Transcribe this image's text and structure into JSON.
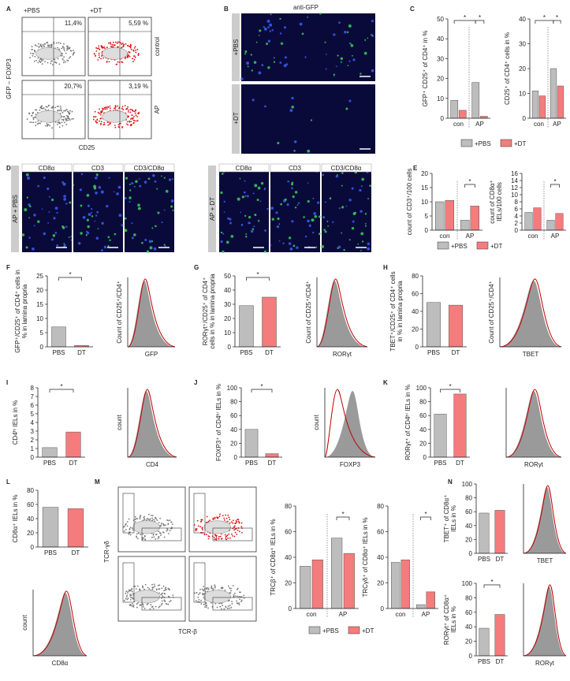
{
  "figure": {
    "panel_letters": [
      "A",
      "B",
      "C",
      "D",
      "E",
      "F",
      "G",
      "H",
      "I",
      "J",
      "K",
      "L",
      "M",
      "N"
    ],
    "legend": {
      "names": [
        "+PBS",
        "+DT"
      ],
      "colors": [
        "#bdbdbd",
        "#f47c7c"
      ]
    },
    "flow_a": {
      "columns": [
        "+PBS",
        "+DT"
      ],
      "rows": [
        "control",
        "AP"
      ],
      "percents": [
        "11,4%",
        "5,59 %",
        "20,7%",
        "3,19 %"
      ],
      "ylabel": "GFP – FOXP3",
      "xlabel": "CD25"
    },
    "image_b": {
      "title": "anti-GFP",
      "rows": [
        "+PBS",
        "+DT"
      ]
    },
    "image_d": {
      "columns": [
        "CD8α",
        "CD3",
        "CD3/CD8α"
      ],
      "groups": [
        "AP + PBS",
        "AP + DT"
      ]
    },
    "flow_m": {
      "ylabel": "TCR-γδ",
      "xlabel": "TCR-β"
    },
    "histograms": [
      {
        "ylabel": "Count of CD25⁺/CD4⁺",
        "xlabel": "GFP"
      },
      {
        "ylabel": "Count of CD25⁺/CD4⁺",
        "xlabel": "RORγt"
      },
      {
        "ylabel": "Count of CD25⁺/CD4⁺",
        "xlabel": "TBET"
      },
      {
        "ylabel": "count",
        "xlabel": "CD4"
      },
      {
        "ylabel": "count",
        "xlabel": "FOXP3"
      },
      {
        "xlabel": "RORγt"
      },
      {
        "ylabel": "count",
        "xlabel": "CD8α"
      },
      {
        "xlabel": "TBET"
      },
      {
        "xlabel": "RORγt"
      }
    ]
  },
  "chart_data": [
    {
      "type": "grouped-bar",
      "ylabel": [
        "GFP⁺ CD25⁺ of CD4⁺ in %"
      ],
      "categories": [
        "con",
        "AP"
      ],
      "series": [
        {
          "color": "#bdbdbd",
          "values": [
            9,
            18
          ]
        },
        {
          "color": "#f47c7c",
          "values": [
            4,
            1
          ]
        }
      ],
      "ylim": [
        0,
        50
      ],
      "yticks": [
        0,
        10,
        20,
        30,
        40,
        50
      ],
      "annotations": [
        "*",
        "*"
      ]
    },
    {
      "type": "grouped-bar",
      "ylabel": [
        "CD25⁺ of CD4⁺ cells in %"
      ],
      "categories": [
        "con",
        "AP"
      ],
      "series": [
        {
          "color": "#bdbdbd",
          "values": [
            11,
            20
          ]
        },
        {
          "color": "#f47c7c",
          "values": [
            9,
            13
          ]
        }
      ],
      "ylim": [
        0,
        40
      ],
      "yticks": [
        0,
        10,
        20,
        30,
        40
      ],
      "annotations": [
        "*",
        "*"
      ]
    },
    {
      "type": "grouped-bar",
      "ylabel": [
        "count of CD3⁺/100 cells"
      ],
      "categories": [
        "con",
        "AP"
      ],
      "series": [
        {
          "color": "#bdbdbd",
          "values": [
            10,
            3.5
          ]
        },
        {
          "color": "#f47c7c",
          "values": [
            10.5,
            8.5
          ]
        }
      ],
      "ylim": [
        0,
        20
      ],
      "yticks": [
        0,
        5,
        10,
        15,
        20
      ],
      "annotations": [
        "*"
      ]
    },
    {
      "type": "grouped-bar",
      "ylabel": [
        "count of CD8α⁺",
        "IELs/100 cells"
      ],
      "categories": [
        "con",
        "AP"
      ],
      "series": [
        {
          "color": "#bdbdbd",
          "values": [
            5,
            2.8
          ]
        },
        {
          "color": "#f47c7c",
          "values": [
            6.3,
            4.7
          ]
        }
      ],
      "ylim": [
        0,
        16
      ],
      "yticks": [
        0,
        2,
        4,
        6,
        8,
        10,
        12,
        14,
        16
      ],
      "annotations": [
        "*"
      ]
    },
    {
      "type": "bar",
      "ylabel": [
        "GFP⁺/CD25⁺ of CD4⁺ cells in",
        "% in lamina propria"
      ],
      "categories": [
        "PBS",
        "DT"
      ],
      "values": [
        7,
        0.5
      ],
      "colors": [
        "#bdbdbd",
        "#f47c7c"
      ],
      "ylim": [
        0,
        25
      ],
      "yticks": [
        0,
        5,
        10,
        15,
        20,
        25
      ],
      "annotations": [
        "*"
      ]
    },
    {
      "type": "bar",
      "ylabel": [
        "RORγt⁺/CD25⁺ of CD4⁺",
        "cells in % in lamina propria"
      ],
      "categories": [
        "PBS",
        "DT"
      ],
      "values": [
        29,
        35
      ],
      "colors": [
        "#bdbdbd",
        "#f47c7c"
      ],
      "ylim": [
        0,
        50
      ],
      "yticks": [
        0,
        10,
        20,
        30,
        40,
        50
      ],
      "annotations": [
        "*"
      ]
    },
    {
      "type": "bar",
      "ylabel": [
        "TBET⁺/CD25⁺ of CD4⁺ cells",
        "in % in lamina propria"
      ],
      "categories": [
        "PBS",
        "DT"
      ],
      "values": [
        50,
        47
      ],
      "colors": [
        "#bdbdbd",
        "#f47c7c"
      ],
      "ylim": [
        0,
        80
      ],
      "yticks": [
        0,
        20,
        40,
        60,
        80
      ],
      "annotations": []
    },
    {
      "type": "bar",
      "ylabel": [
        "CD4ʰⁱ IELs in %"
      ],
      "categories": [
        "PBS",
        "DT"
      ],
      "values": [
        1.1,
        2.9
      ],
      "colors": [
        "#bdbdbd",
        "#f47c7c"
      ],
      "ylim": [
        0,
        8
      ],
      "yticks": [
        0,
        1,
        2,
        3,
        4,
        5,
        6,
        7,
        8
      ],
      "annotations": [
        "*"
      ]
    },
    {
      "type": "bar",
      "ylabel": [
        "FOXP3⁺ of CD4ʰⁱ IELs in %"
      ],
      "categories": [
        "PBS",
        "DT"
      ],
      "values": [
        40,
        5
      ],
      "colors": [
        "#bdbdbd",
        "#f47c7c"
      ],
      "ylim": [
        0,
        100
      ],
      "yticks": [
        0,
        20,
        40,
        60,
        80,
        100
      ],
      "annotations": [
        "*"
      ]
    },
    {
      "type": "bar",
      "ylabel": [
        "RORγt⁺ of CD4ʰⁱ IELs in %"
      ],
      "categories": [
        "PBS",
        "DT"
      ],
      "values": [
        62,
        91
      ],
      "colors": [
        "#bdbdbd",
        "#f47c7c"
      ],
      "ylim": [
        0,
        100
      ],
      "yticks": [
        0,
        20,
        40,
        60,
        80,
        100
      ],
      "annotations": [
        "*"
      ]
    },
    {
      "type": "bar",
      "ylabel": [
        "CD8α⁺ IELs in %"
      ],
      "categories": [
        "PBS",
        "DT"
      ],
      "values": [
        56,
        54
      ],
      "colors": [
        "#bdbdbd",
        "#f47c7c"
      ],
      "ylim": [
        0,
        80
      ],
      "yticks": [
        0,
        20,
        40,
        60,
        80
      ],
      "annotations": []
    },
    {
      "type": "grouped-bar",
      "ylabel": [
        "TRCβ⁺ of CD8α⁺ IELs in %"
      ],
      "categories": [
        "con",
        "AP"
      ],
      "series": [
        {
          "color": "#bdbdbd",
          "values": [
            33,
            55
          ]
        },
        {
          "color": "#f47c7c",
          "values": [
            38,
            43
          ]
        }
      ],
      "ylim": [
        0,
        80
      ],
      "yticks": [
        0,
        20,
        40,
        60,
        80
      ],
      "annotations": [
        "*"
      ]
    },
    {
      "type": "grouped-bar",
      "ylabel": [
        "TRCγδ⁺ of CD8α⁺ IELs in %"
      ],
      "categories": [
        "con",
        "AP"
      ],
      "series": [
        {
          "color": "#bdbdbd",
          "values": [
            36,
            3
          ]
        },
        {
          "color": "#f47c7c",
          "values": [
            38,
            13
          ]
        }
      ],
      "ylim": [
        0,
        80
      ],
      "yticks": [
        0,
        20,
        40,
        60,
        80
      ],
      "annotations": [
        "*"
      ]
    },
    {
      "type": "bar",
      "ylabel": [
        "TBET⁺ of CD8α⁺",
        "IELs in %"
      ],
      "categories": [
        "PBS",
        "DT"
      ],
      "values": [
        58,
        62
      ],
      "colors": [
        "#bdbdbd",
        "#f47c7c"
      ],
      "ylim": [
        0,
        100
      ],
      "yticks": [
        0,
        20,
        40,
        60,
        80,
        100
      ],
      "annotations": []
    },
    {
      "type": "bar",
      "ylabel": [
        "RORγt⁺ of CD8α⁺",
        "IELs in %"
      ],
      "categories": [
        "PBS",
        "DT"
      ],
      "values": [
        38,
        57
      ],
      "colors": [
        "#bdbdbd",
        "#f47c7c"
      ],
      "ylim": [
        0,
        100
      ],
      "yticks": [
        0,
        20,
        40,
        60,
        80,
        100
      ],
      "annotations": [
        "*"
      ]
    }
  ]
}
